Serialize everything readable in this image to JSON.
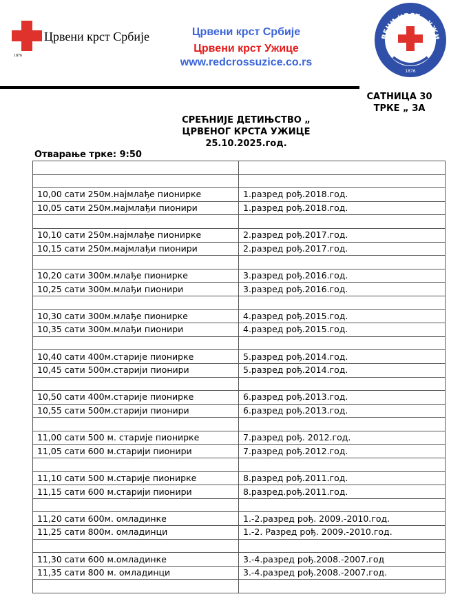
{
  "header": {
    "left_logo": {
      "text": "Црвени крст Србије",
      "year": "1876",
      "icon": "red-cross-icon"
    },
    "center_lines": [
      "Црвени крст Србије",
      "Црвени крст Ужице",
      "www.redcrossuzice.co.rs"
    ],
    "right_logo": {
      "text": "ЦРВЕНИ КРСТ - УЖИЦЕ",
      "year": "1876",
      "icon": "red-cross-badge-icon"
    },
    "colors": {
      "blue": "#3a64d8",
      "red": "#e31b1b"
    }
  },
  "side_title": [
    "САТНИЦА 30",
    "ТРКЕ „ ЗА"
  ],
  "title": [
    "СРЕЋНИЈЕ ДЕТИЊСТВО „",
    "ЦРВЕНОГ КРСТА УЖИЦЕ",
    "25.10.2025.год."
  ],
  "opening": "Отварање трке: 9:50",
  "rows": [
    [
      "",
      ""
    ],
    [
      "",
      ""
    ],
    [
      "10,00 сати 250м.најмлађе пионирке",
      "1.разред рођ.2018.год."
    ],
    [
      "10,05 сати 250м.мајмлађи пионири",
      "1.разред рођ.2018.год."
    ],
    [
      "",
      ""
    ],
    [
      "10,10 сати 250м.најмлађе пионирке",
      "2.разред рођ.2017.год."
    ],
    [
      "10,15 сати 250м.мајмлађи пионири",
      "2.разред рођ.2017.год."
    ],
    [
      "",
      ""
    ],
    [
      "10,20 сати 300м.млађе пионирке",
      "3.разред рођ.2016.год."
    ],
    [
      "10,25 сати 300м.млађи пионири",
      "3.разред рођ.2016.год."
    ],
    [
      "",
      ""
    ],
    [
      "10,30 сати 300м.млађе пионирке",
      "4.разред рођ.2015.год."
    ],
    [
      "10,35 сати 300м.млађи пионири",
      "4.разред рођ.2015.год."
    ],
    [
      "",
      ""
    ],
    [
      "10,40 сати 400м.старије пионирке",
      "5.разред рођ.2014.год."
    ],
    [
      "10,45 сати 500м.старији пионири",
      "5.разред рођ.2014.год."
    ],
    [
      "",
      ""
    ],
    [
      "10,50 сати 400м.старије пионирке",
      "6.разред рођ.2013.год."
    ],
    [
      "10,55 сати 500м.старији пионири",
      "6.разред рођ.2013.год."
    ],
    [
      "",
      ""
    ],
    [
      "11,00 сати 500 м. старије пионирке",
      "7.разред рођ. 2012.год."
    ],
    [
      "11,05 сати 600 м.старији пионири",
      "7.разред рођ.2012.год."
    ],
    [
      "",
      ""
    ],
    [
      "11,10 сати 500 м.старије пионирке",
      "8.разред рођ.2011.год."
    ],
    [
      "11,15 сати 600 м.старији пионири",
      "8.разред.рођ.2011.год."
    ],
    [
      "",
      ""
    ],
    [
      "11,20 сати 600м. омладинке",
      "1.-2.разред рођ. 2009.-2010.год."
    ],
    [
      "11,25 сати 800м. омладинци",
      "1.-2. Разред рођ. 2009.-2010.год."
    ],
    [
      "",
      ""
    ],
    [
      "11,30 сати 600 м.омладинке",
      "3.-4.разред рођ.2008.-2007.год"
    ],
    [
      "11,35 сати 800 м. омладинци",
      "3.-4.разред рођ.2008.-2007.год."
    ],
    [
      "",
      ""
    ]
  ]
}
